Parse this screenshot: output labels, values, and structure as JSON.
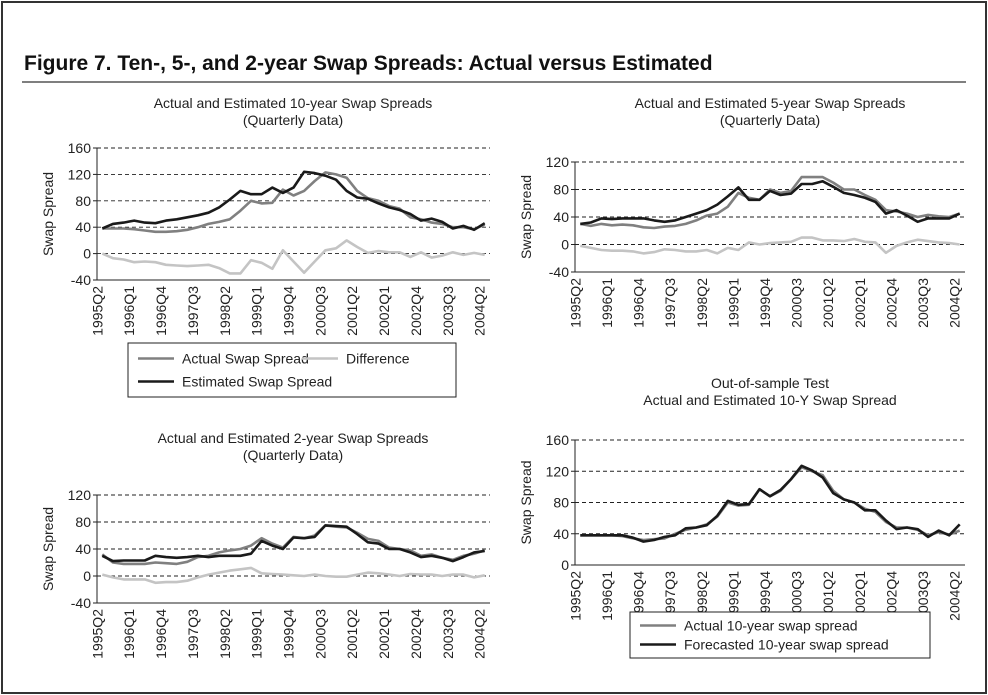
{
  "title": "Figure 7.  Ten-, 5-, and 2-year Swap Spreads: Actual versus Estimated",
  "chart_data": [
    {
      "type": "line",
      "title": "Actual and Estimated 10-year Swap Spreads",
      "subtitle": "(Quarterly Data)",
      "y_label": "Swap Spread",
      "categories": [
        "1995Q2",
        null,
        null,
        "1996Q1",
        null,
        null,
        "1996Q4",
        null,
        null,
        "1997Q3",
        null,
        null,
        "1998Q2",
        null,
        null,
        "1999Q1",
        null,
        null,
        "1999Q4",
        null,
        null,
        "2000Q3",
        null,
        null,
        "2001Q2",
        null,
        null,
        "2002Q1",
        null,
        null,
        "2002Q4",
        null,
        null,
        "2003Q3",
        null,
        null,
        "2004Q2"
      ],
      "ylim": [
        -40,
        160
      ],
      "yticks": [
        -40,
        0,
        40,
        80,
        120,
        160
      ],
      "grid": true,
      "legend": "bottom",
      "series": [
        {
          "name": "Actual Swap Spread",
          "color": "#808080",
          "values": [
            38,
            38,
            38,
            37,
            35,
            33,
            33,
            34,
            36,
            40,
            45,
            48,
            52,
            65,
            80,
            76,
            77,
            97,
            88,
            95,
            110,
            123,
            120,
            115,
            95,
            84,
            80,
            72,
            68,
            55,
            52,
            47,
            45,
            40,
            40,
            37,
            44
          ]
        },
        {
          "name": "Difference",
          "color": "#c4c4c4",
          "values": [
            0,
            -7,
            -9,
            -13,
            -12,
            -13,
            -17,
            -18,
            -19,
            -18,
            -17,
            -22,
            -30,
            -30,
            -10,
            -14,
            -23,
            5,
            -12,
            -29,
            -12,
            5,
            8,
            20,
            10,
            1,
            4,
            2,
            2,
            -5,
            2,
            -6,
            -3,
            2,
            -2,
            1,
            -2
          ]
        },
        {
          "name": "Estimated Swap Spread",
          "color": "#1a1a1a",
          "values": [
            38,
            45,
            47,
            50,
            47,
            46,
            50,
            52,
            55,
            58,
            62,
            70,
            82,
            95,
            90,
            90,
            100,
            92,
            100,
            124,
            122,
            118,
            112,
            95,
            85,
            83,
            76,
            70,
            66,
            60,
            50,
            53,
            48,
            38,
            42,
            36,
            46
          ]
        }
      ]
    },
    {
      "type": "line",
      "title": "Actual and Estimated 5-year Swap Spreads",
      "subtitle": "(Quarterly Data)",
      "y_label": "Swap Spread",
      "categories": [
        "1995Q2",
        null,
        null,
        "1996Q1",
        null,
        null,
        "1996Q4",
        null,
        null,
        "1997Q3",
        null,
        null,
        "1998Q2",
        null,
        null,
        "1999Q1",
        null,
        null,
        "1999Q4",
        null,
        null,
        "2000Q3",
        null,
        null,
        "2001Q2",
        null,
        null,
        "2002Q1",
        null,
        null,
        "2002Q4",
        null,
        null,
        "2003Q3",
        null,
        null,
        "2004Q2"
      ],
      "ylim": [
        -40,
        120
      ],
      "yticks": [
        -40,
        0,
        40,
        80,
        120
      ],
      "grid": true,
      "series": [
        {
          "color": "#808080",
          "values": [
            30,
            27,
            30,
            28,
            29,
            28,
            25,
            24,
            26,
            27,
            30,
            35,
            42,
            45,
            55,
            75,
            68,
            65,
            80,
            75,
            78,
            98,
            98,
            98,
            90,
            80,
            80,
            72,
            65,
            50,
            48,
            45,
            40,
            43,
            41,
            40,
            45
          ]
        },
        {
          "color": "#c4c4c4",
          "values": [
            -2,
            -5,
            -8,
            -9,
            -9,
            -10,
            -13,
            -11,
            -7,
            -8,
            -10,
            -10,
            -8,
            -13,
            -5,
            -8,
            3,
            0,
            2,
            3,
            4,
            10,
            10,
            6,
            6,
            5,
            8,
            4,
            3,
            -12,
            -2,
            3,
            7,
            5,
            3,
            2,
            0
          ]
        },
        {
          "color": "#1a1a1a",
          "values": [
            30,
            32,
            38,
            37,
            38,
            38,
            38,
            35,
            33,
            35,
            40,
            45,
            50,
            58,
            70,
            83,
            65,
            65,
            78,
            72,
            74,
            88,
            88,
            92,
            84,
            75,
            72,
            68,
            62,
            45,
            50,
            42,
            33,
            38,
            38,
            38,
            45
          ]
        }
      ]
    },
    {
      "type": "line",
      "title": "Actual and Estimated 2-year Swap Spreads",
      "subtitle": "(Quarterly Data)",
      "y_label": "Swap Spread",
      "categories": [
        "1995Q2",
        null,
        null,
        "1996Q1",
        null,
        null,
        "1996Q4",
        null,
        null,
        "1997Q3",
        null,
        null,
        "1998Q2",
        null,
        null,
        "1999Q1",
        null,
        null,
        "1999Q4",
        null,
        null,
        "2000Q3",
        null,
        null,
        "2001Q2",
        null,
        null,
        "2002Q1",
        null,
        null,
        "2002Q4",
        null,
        null,
        "2003Q3",
        null,
        null,
        "2004Q2"
      ],
      "ylim": [
        -40,
        120
      ],
      "yticks": [
        -40,
        0,
        40,
        80,
        120
      ],
      "grid": true,
      "series": [
        {
          "color": "#808080",
          "values": [
            32,
            20,
            18,
            18,
            18,
            20,
            19,
            18,
            21,
            28,
            30,
            35,
            38,
            40,
            45,
            56,
            48,
            42,
            58,
            56,
            60,
            75,
            73,
            72,
            64,
            55,
            52,
            42,
            40,
            38,
            30,
            32,
            27,
            24,
            30,
            33,
            38
          ]
        },
        {
          "color": "#c4c4c4",
          "values": [
            2,
            -2,
            -5,
            -5,
            -5,
            -10,
            -9,
            -9,
            -7,
            -2,
            2,
            5,
            8,
            10,
            12,
            4,
            3,
            2,
            1,
            0,
            2,
            0,
            -1,
            -1,
            2,
            5,
            4,
            2,
            0,
            3,
            2,
            2,
            0,
            2,
            2,
            -2,
            1
          ]
        },
        {
          "color": "#1a1a1a",
          "values": [
            30,
            22,
            23,
            23,
            23,
            30,
            28,
            27,
            28,
            30,
            28,
            30,
            30,
            30,
            33,
            52,
            45,
            40,
            57,
            56,
            58,
            75,
            74,
            73,
            62,
            50,
            48,
            40,
            40,
            35,
            28,
            30,
            27,
            22,
            28,
            35,
            37
          ]
        }
      ]
    },
    {
      "type": "line",
      "title": "Out-of-sample Test",
      "subtitle": "Actual and Estimated 10-Y Swap Spread",
      "y_label": "Swap Spread",
      "categories": [
        "1995Q2",
        null,
        null,
        "1996Q1",
        null,
        null,
        "1996Q4",
        null,
        null,
        "1997Q3",
        null,
        null,
        "1998Q2",
        null,
        null,
        "1999Q1",
        null,
        null,
        "1999Q4",
        null,
        null,
        "2000Q3",
        null,
        null,
        "2001Q2",
        null,
        null,
        "2002Q1",
        null,
        null,
        "2002Q4",
        null,
        null,
        "2003Q3",
        null,
        null,
        "2004Q2"
      ],
      "ylim": [
        0,
        160
      ],
      "yticks": [
        0,
        40,
        80,
        120,
        160
      ],
      "grid": true,
      "legend": "bottom",
      "series": [
        {
          "name": "Actual 10-year swap spread",
          "color": "#808080",
          "values": [
            38,
            38,
            38,
            38,
            37,
            34,
            32,
            33,
            34,
            40,
            45,
            48,
            52,
            62,
            80,
            76,
            77,
            97,
            88,
            95,
            110,
            125,
            120,
            115,
            95,
            84,
            80,
            72,
            68,
            55,
            48,
            48,
            45,
            38,
            42,
            39,
            44
          ]
        },
        {
          "name": "Forecasted 10-year swap spread",
          "color": "#1a1a1a",
          "values": [
            38,
            38,
            38,
            38,
            38,
            35,
            30,
            32,
            36,
            38,
            47,
            48,
            51,
            63,
            82,
            77,
            78,
            97,
            88,
            96,
            110,
            127,
            121,
            112,
            92,
            84,
            80,
            70,
            70,
            57,
            46,
            48,
            46,
            36,
            44,
            38,
            52
          ]
        }
      ]
    }
  ]
}
